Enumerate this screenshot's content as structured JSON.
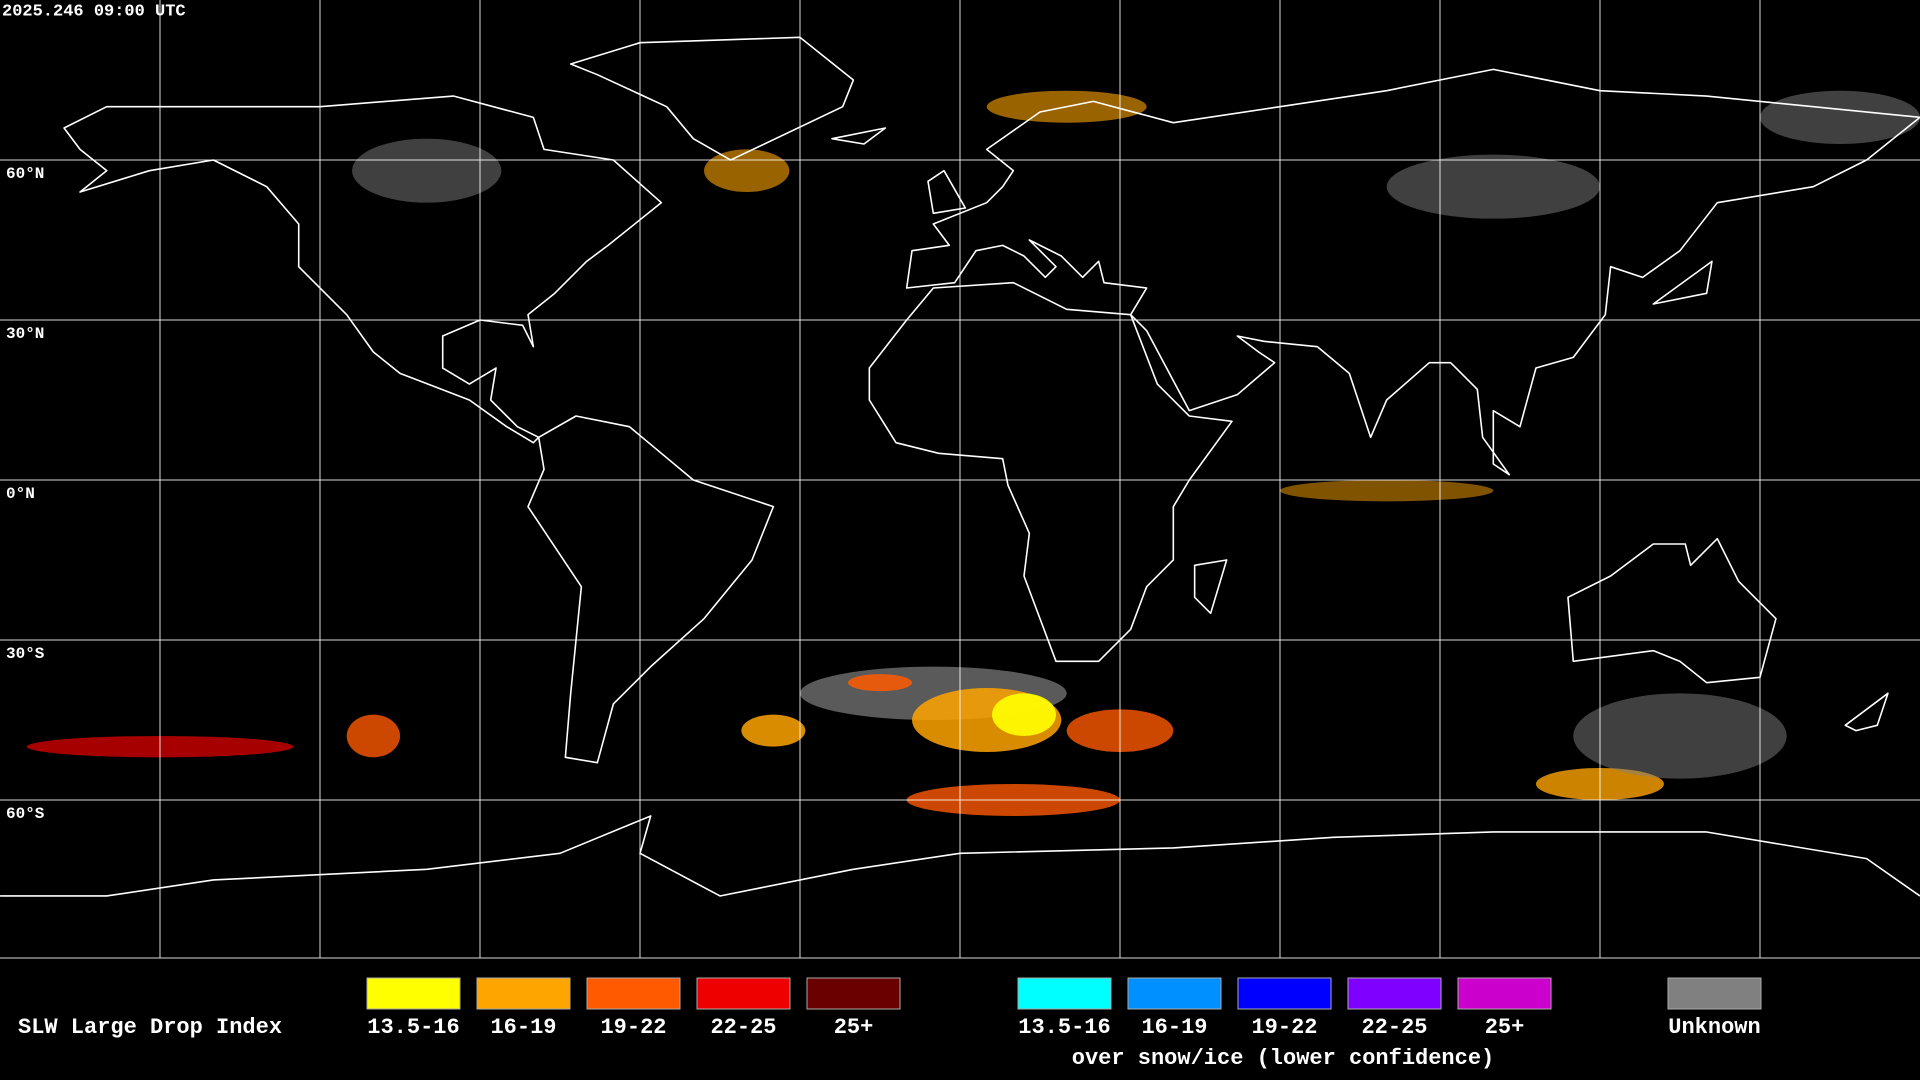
{
  "header": {
    "timestamp": "2025.246 09:00 UTC"
  },
  "map": {
    "latitude_labels": [
      "60°N",
      "30°N",
      "0°N",
      "30°S",
      "60°S"
    ]
  },
  "legend": {
    "title": "SLW Large Drop Index",
    "groups": [
      {
        "items": [
          {
            "label": "13.5-16",
            "color": "#ffff00"
          },
          {
            "label": "16-19",
            "color": "#ffa500"
          },
          {
            "label": "19-22",
            "color": "#ff5a00"
          },
          {
            "label": "22-25",
            "color": "#ee0000"
          },
          {
            "label": "25+",
            "color": "#6a0000"
          }
        ]
      },
      {
        "items": [
          {
            "label": "13.5-16",
            "color": "#00ffff"
          },
          {
            "label": "16-19",
            "color": "#0090ff"
          },
          {
            "label": "19-22",
            "color": "#0000ff"
          },
          {
            "label": "22-25",
            "color": "#8000ff"
          },
          {
            "label": "25+",
            "color": "#cc00cc"
          }
        ],
        "caption": "over snow/ice (lower confidence)"
      }
    ],
    "unknown": {
      "label": "Unknown",
      "color": "#808080"
    }
  }
}
